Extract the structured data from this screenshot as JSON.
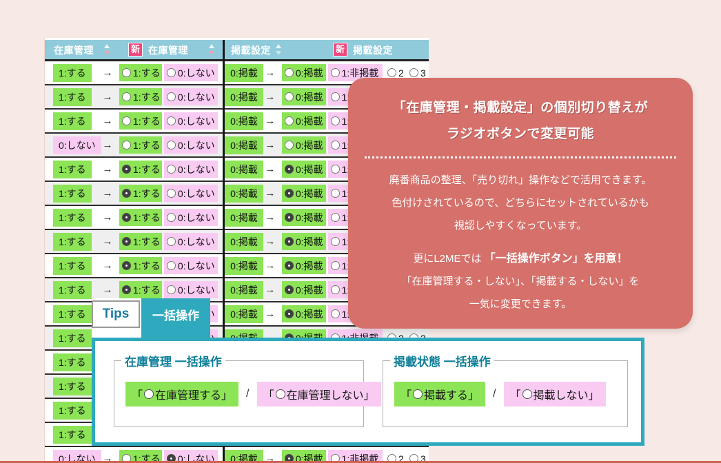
{
  "colors": {
    "bg": "#f7e9e5",
    "green": "#8ce456",
    "pink": "#f9cbf2",
    "header": "#8fcbdb",
    "badge": "#f0467c",
    "card": "#d5706a",
    "teal": "#2fa9bd",
    "legend": "#0e7f99",
    "bottom_line": "#cf6354"
  },
  "table": {
    "header": {
      "stock_current": "在庫管理",
      "stock_new_badge": "新",
      "stock_new": "在庫管理",
      "pub_current": "掲載設定",
      "pub_new_badge": "新",
      "pub_new": "掲載設定"
    },
    "arrow": "→",
    "stock_options": [
      "1:する",
      "0:しない"
    ],
    "pub_options": [
      "0:掲載",
      "1:非掲載",
      "2",
      "3"
    ],
    "rows": [
      {
        "stock": "1:する",
        "stock_on": true,
        "stock_sel": null,
        "pub": "0:掲載",
        "pub_sel": null,
        "shade": false
      },
      {
        "stock": "1:する",
        "stock_on": true,
        "stock_sel": null,
        "pub": "0:掲載",
        "pub_sel": null,
        "shade": true
      },
      {
        "stock": "1:する",
        "stock_on": true,
        "stock_sel": null,
        "pub": "0:掲載",
        "pub_sel": null,
        "shade": false
      },
      {
        "stock": "0:しない",
        "stock_on": false,
        "stock_sel": null,
        "pub": "0:掲載",
        "pub_sel": null,
        "shade": true
      },
      {
        "stock": "1:する",
        "stock_on": true,
        "stock_sel": "1",
        "pub": "0:掲載",
        "pub_sel": "0",
        "shade": false
      },
      {
        "stock": "1:する",
        "stock_on": true,
        "stock_sel": "1",
        "pub": "0:掲載",
        "pub_sel": "0",
        "shade": true
      },
      {
        "stock": "1:する",
        "stock_on": true,
        "stock_sel": "1",
        "pub": "0:掲載",
        "pub_sel": "0",
        "shade": false
      },
      {
        "stock": "1:する",
        "stock_on": true,
        "stock_sel": "1",
        "pub": "0:掲載",
        "pub_sel": "0",
        "shade": true
      },
      {
        "stock": "1:する",
        "stock_on": true,
        "stock_sel": "1",
        "pub": "0:掲載",
        "pub_sel": "0",
        "shade": false
      },
      {
        "stock": "1:する",
        "stock_on": true,
        "stock_sel": "1",
        "pub": "0:掲載",
        "pub_sel": "0",
        "shade": true
      },
      {
        "stock": "1:する",
        "stock_on": true,
        "stock_sel": "1",
        "pub": "0:掲載",
        "pub_sel": "0",
        "shade": false
      },
      {
        "stock": "1:する",
        "stock_on": true,
        "stock_sel": "1",
        "pub": "0:掲載",
        "pub_sel": "0",
        "shade": true
      },
      {
        "stock": "1:する",
        "stock_on": true,
        "stock_sel": "1",
        "pub": "0:掲載",
        "pub_sel": "0",
        "shade": false
      },
      {
        "stock": "1:する",
        "stock_on": true,
        "stock_sel": "1",
        "pub": "0:掲載",
        "pub_sel": "0",
        "shade": true
      },
      {
        "stock": "1:する",
        "stock_on": true,
        "stock_sel": "1",
        "pub": "0:掲載",
        "pub_sel": "0",
        "shade": false
      },
      {
        "stock": "1:する",
        "stock_on": true,
        "stock_sel": "1",
        "pub": "0:掲載",
        "pub_sel": "0",
        "shade": false
      },
      {
        "stock": "0:しない",
        "stock_on": false,
        "stock_sel": "0",
        "pub": "0:掲載",
        "pub_sel": "0",
        "shade": false
      }
    ]
  },
  "overlay": {
    "title_line1": "「在庫管理・掲載設定」の個別切り替えが",
    "title_line2": "ラジオボタンで変更可能",
    "body1_line1": "廃番商品の整理、「売り切れ」操作などで活用できます。",
    "body1_line2": "色付けされているので、どちらにセットされているかも",
    "body1_line3": "視認しやすくなっています。",
    "body2_pre": "更にL2MEでは ",
    "body2_bold": "「一括操作ボタン」を用意！",
    "body2_line2": "「在庫管理する・しない」、「掲載する・しない」を",
    "body2_line3": "一気に変更できます。"
  },
  "tips": {
    "tab_tips": "Tips",
    "tab_batch": "一括操作",
    "bracket_open": "「",
    "bracket_close": "」",
    "separator": "/",
    "stock_legend": "在庫管理 一括操作",
    "stock_on_label": "在庫管理する",
    "stock_off_label": "在庫管理しない",
    "pub_legend": "掲載状態 一括操作",
    "pub_on_label": "掲載する",
    "pub_off_label": "掲載しない"
  }
}
